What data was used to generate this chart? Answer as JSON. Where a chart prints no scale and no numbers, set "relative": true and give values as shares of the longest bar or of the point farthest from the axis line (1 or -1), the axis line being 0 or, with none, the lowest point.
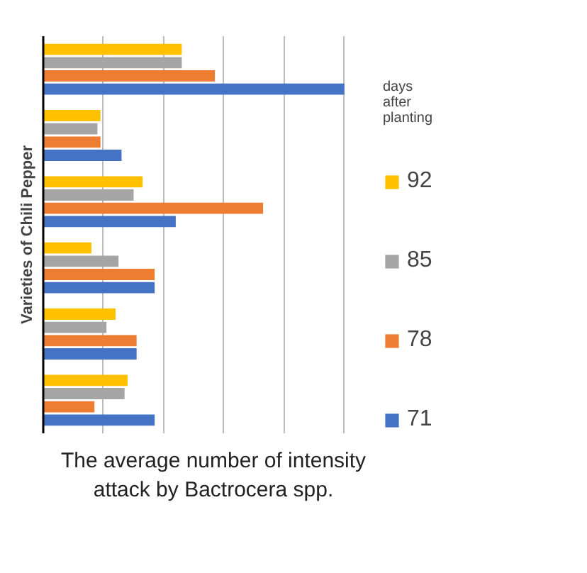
{
  "chart_data": {
    "type": "bar",
    "orientation": "horizontal",
    "relative": true,
    "xlabel": "The average number of intensity attack by Bactrocera spp.",
    "ylabel": "Varieties of Chili Pepper",
    "legend_title": "days after planting",
    "legend": "right",
    "grid": "x",
    "categories": [
      null,
      null,
      null,
      null,
      null,
      null
    ],
    "series": [
      {
        "name": "71",
        "color": "#4472c4",
        "values": [
          1,
          0.26,
          0.44,
          0.37,
          0.31,
          0.37
        ]
      },
      {
        "name": "78",
        "color": "#ed7d31",
        "values": [
          0.57,
          0.19,
          0.73,
          0.37,
          0.31,
          0.17
        ]
      },
      {
        "name": "85",
        "color": "#a5a5a5",
        "values": [
          0.46,
          0.18,
          0.3,
          0.25,
          0.21,
          0.27
        ]
      },
      {
        "name": "92",
        "color": "#ffc000",
        "values": [
          0.46,
          0.19,
          0.33,
          0.16,
          0.24,
          0.28
        ]
      }
    ]
  }
}
